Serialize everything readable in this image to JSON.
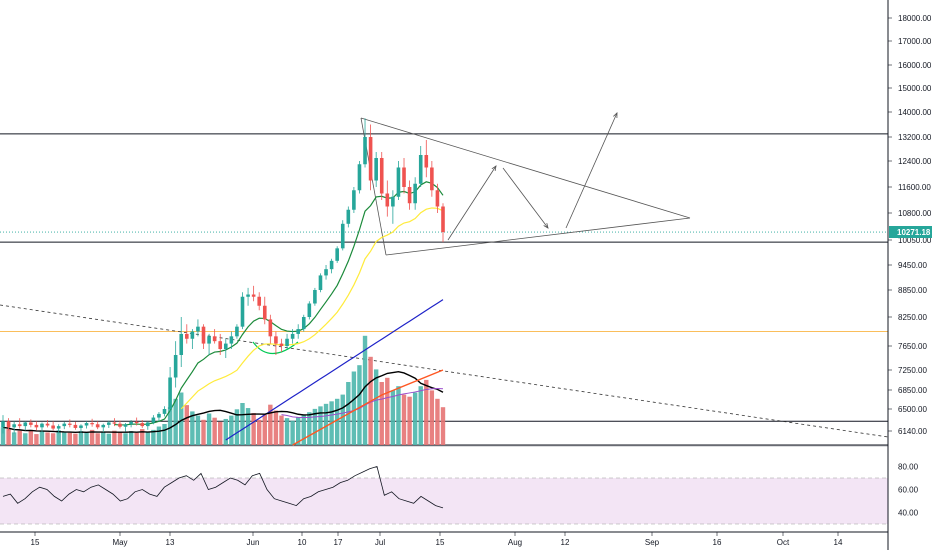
{
  "chart_data": [
    {
      "type": "candlestick",
      "y_axis": {
        "scale": "nonlinear",
        "tick_labels": [
          "18000.00",
          "17000.00",
          "16000.00",
          "15000.00",
          "14000.00",
          "13200.00",
          "12400.00",
          "11600.00",
          "10800.00",
          "10050.00",
          "9450.00",
          "8850.00",
          "8250.00",
          "7650.00",
          "7250.00",
          "6850.00",
          "6500.00",
          "6140.00"
        ],
        "tick_values": [
          18000,
          17000,
          16000,
          15000,
          14000,
          13200,
          12400,
          11600,
          10800,
          10050,
          9450,
          8850,
          8250,
          7650,
          7250,
          6850,
          6500,
          6140
        ]
      },
      "x_axis": {
        "tick_labels": [
          "15",
          "May",
          "13",
          "Jun",
          "10",
          "17",
          "Jul",
          "15",
          "Aug",
          "12",
          "Sep",
          "16",
          "Oct",
          "14"
        ]
      },
      "last_price": "10271.18",
      "colors": {
        "up": "#26a69a",
        "down": "#ef5350",
        "last_price_badge": "#26a69a",
        "ema_short": "#1b8a3a",
        "ema_mid": "#ffeb3b",
        "ema_long": "#1e22c8",
        "vol_ma_black": "#000000",
        "vol_ma_orange": "#ff5722",
        "vol_ma_purple": "#9c4dcc",
        "support_line": "#f9a825",
        "rsi_band": "#f3e5f5"
      },
      "horizontal_levels": [
        13300,
        10000,
        7950,
        6300
      ],
      "candles_ohlc": [
        [
          6200,
          6400,
          6100,
          6300
        ],
        [
          6300,
          6350,
          6150,
          6200
        ],
        [
          6200,
          6300,
          6100,
          6250
        ],
        [
          6250,
          6350,
          6180,
          6220
        ],
        [
          6220,
          6300,
          6150,
          6280
        ],
        [
          6280,
          6330,
          6200,
          6240
        ],
        [
          6240,
          6300,
          6150,
          6200
        ],
        [
          6200,
          6280,
          6120,
          6260
        ],
        [
          6260,
          6320,
          6200,
          6230
        ],
        [
          6230,
          6300,
          6150,
          6180
        ],
        [
          6180,
          6250,
          6100,
          6220
        ],
        [
          6220,
          6290,
          6170,
          6260
        ],
        [
          6260,
          6330,
          6200,
          6240
        ],
        [
          6240,
          6290,
          6160,
          6190
        ],
        [
          6190,
          6250,
          6110,
          6230
        ],
        [
          6230,
          6300,
          6180,
          6270
        ],
        [
          6270,
          6340,
          6210,
          6250
        ],
        [
          6250,
          6300,
          6170,
          6200
        ],
        [
          6200,
          6260,
          6120,
          6240
        ],
        [
          6240,
          6310,
          6190,
          6280
        ],
        [
          6280,
          6350,
          6220,
          6260
        ],
        [
          6260,
          6310,
          6180,
          6210
        ],
        [
          6210,
          6270,
          6130,
          6250
        ],
        [
          6250,
          6320,
          6200,
          6290
        ],
        [
          6290,
          6360,
          6230,
          6270
        ],
        [
          6270,
          6320,
          6190,
          6220
        ],
        [
          6220,
          6300,
          6160,
          6280
        ],
        [
          6280,
          6400,
          6250,
          6360
        ],
        [
          6360,
          6450,
          6300,
          6420
        ],
        [
          6420,
          6550,
          6380,
          6500
        ],
        [
          6500,
          7300,
          6450,
          7100
        ],
        [
          7100,
          7750,
          6900,
          7500
        ],
        [
          7500,
          8250,
          7300,
          7900
        ],
        [
          7900,
          8100,
          7700,
          7800
        ],
        [
          7800,
          8000,
          7600,
          7950
        ],
        [
          7950,
          8200,
          7850,
          8050
        ],
        [
          8050,
          8100,
          7600,
          7700
        ],
        [
          7700,
          7900,
          7500,
          7850
        ],
        [
          7850,
          8000,
          7700,
          7750
        ],
        [
          7750,
          7900,
          7500,
          7600
        ],
        [
          7600,
          7800,
          7450,
          7700
        ],
        [
          7700,
          7950,
          7600,
          7850
        ],
        [
          7850,
          8100,
          7800,
          8050
        ],
        [
          8050,
          8800,
          8000,
          8700
        ],
        [
          8700,
          8900,
          8500,
          8750
        ],
        [
          8750,
          8950,
          8600,
          8700
        ],
        [
          8700,
          8800,
          8400,
          8500
        ],
        [
          8500,
          8700,
          8100,
          8200
        ],
        [
          8200,
          8300,
          7700,
          7850
        ],
        [
          7850,
          7950,
          7500,
          7700
        ],
        [
          7700,
          7800,
          7550,
          7650
        ],
        [
          7650,
          7900,
          7600,
          7800
        ],
        [
          7800,
          8000,
          7700,
          7900
        ],
        [
          7900,
          8100,
          7800,
          8000
        ],
        [
          8000,
          8300,
          7950,
          8250
        ],
        [
          8250,
          8600,
          8200,
          8550
        ],
        [
          8550,
          8900,
          8500,
          8850
        ],
        [
          8850,
          9250,
          8800,
          9200
        ],
        [
          9200,
          9450,
          9100,
          9350
        ],
        [
          9350,
          9600,
          9250,
          9550
        ],
        [
          9550,
          9900,
          9500,
          9850
        ],
        [
          9850,
          10600,
          9800,
          10500
        ],
        [
          10500,
          11000,
          10400,
          10900
        ],
        [
          10900,
          11600,
          10800,
          11500
        ],
        [
          11500,
          12400,
          11400,
          12300
        ],
        [
          12300,
          13800,
          12200,
          13200
        ],
        [
          13200,
          13600,
          11500,
          11800
        ],
        [
          11800,
          12700,
          11600,
          12500
        ],
        [
          12500,
          12700,
          11200,
          11400
        ],
        [
          11400,
          11800,
          10700,
          11000
        ],
        [
          11000,
          11500,
          10500,
          11300
        ],
        [
          11300,
          12400,
          11200,
          12200
        ],
        [
          12200,
          12500,
          11400,
          11600
        ],
        [
          11600,
          11800,
          10900,
          11100
        ],
        [
          11100,
          11900,
          10900,
          11700
        ],
        [
          11700,
          12900,
          11600,
          12600
        ],
        [
          12600,
          13100,
          11900,
          12200
        ],
        [
          12200,
          12400,
          11300,
          11500
        ],
        [
          11500,
          11700,
          10800,
          11000
        ],
        [
          11000,
          11100,
          10000,
          10271
        ]
      ],
      "volume_bars": [
        42,
        38,
        30,
        34,
        28,
        36,
        26,
        32,
        30,
        28,
        35,
        31,
        29,
        27,
        33,
        30,
        36,
        28,
        31,
        27,
        34,
        30,
        28,
        33,
        29,
        38,
        30,
        36,
        44,
        50,
        90,
        110,
        125,
        95,
        80,
        70,
        60,
        75,
        65,
        55,
        62,
        70,
        85,
        100,
        88,
        76,
        60,
        72,
        96,
        82,
        70,
        64,
        58,
        66,
        72,
        78,
        86,
        92,
        98,
        104,
        110,
        120,
        150,
        175,
        190,
        260,
        210,
        180,
        150,
        160,
        130,
        140,
        120,
        115,
        125,
        140,
        155,
        130,
        110,
        90
      ],
      "rsi": {
        "tick_labels": [
          "80.00",
          "60.00",
          "40.00"
        ],
        "tick_values": [
          80,
          60,
          40
        ],
        "band": [
          30,
          70
        ],
        "values": [
          54,
          56,
          48,
          52,
          58,
          62,
          60,
          54,
          50,
          56,
          60,
          58,
          62,
          64,
          60,
          56,
          50,
          52,
          58,
          60,
          56,
          54,
          62,
          66,
          70,
          72,
          68,
          74,
          60,
          62,
          66,
          70,
          68,
          64,
          72,
          74,
          60,
          52,
          50,
          48,
          46,
          52,
          54,
          58,
          60,
          62,
          66,
          68,
          72,
          75,
          78,
          80,
          55,
          58,
          52,
          50,
          48,
          54,
          50,
          46,
          44
        ]
      }
    }
  ]
}
